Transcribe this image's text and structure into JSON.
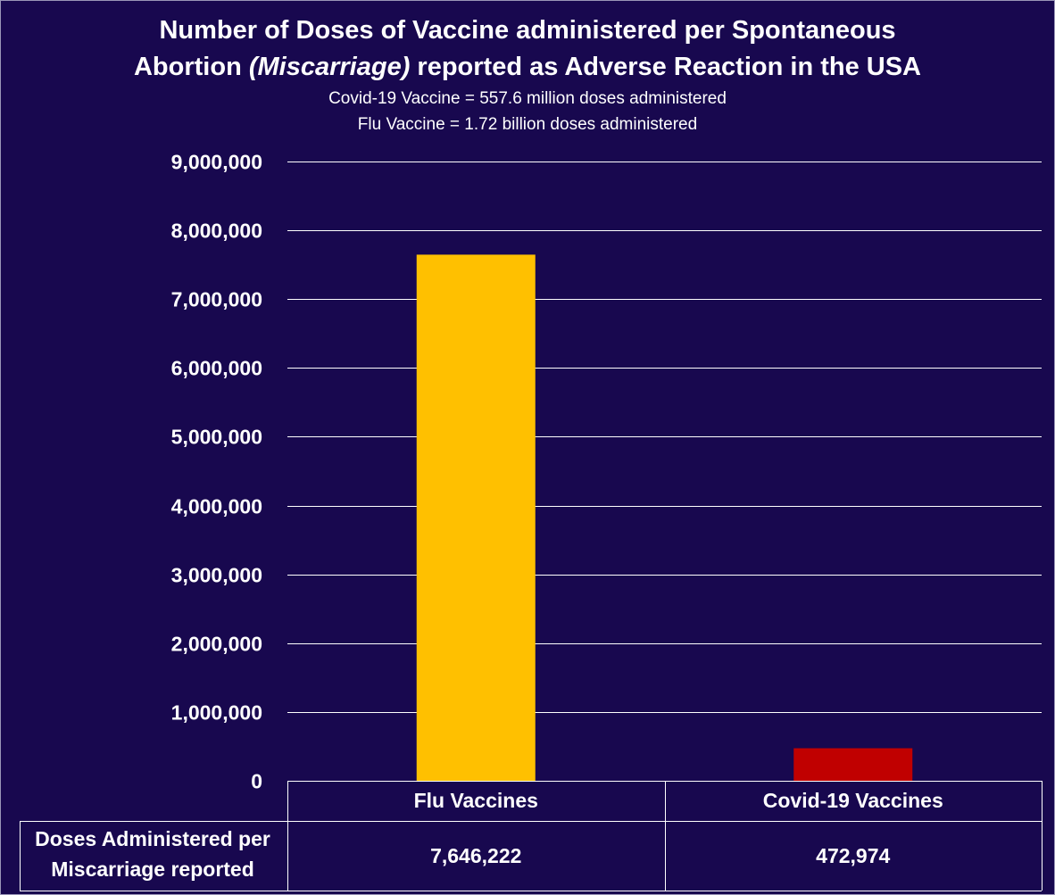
{
  "title_line1": "Number of Doses of Vaccine administered per Spontaneous",
  "title_line2_pre": "Abortion ",
  "title_line2_em": "(Miscarriage)",
  "title_line2_post": " reported as Adverse Reaction in the USA",
  "subtitle_line1": "Covid-19 Vaccine = 557.6 million doses administered",
  "subtitle_line2": "Flu Vaccine = 1.72 billion doses administered",
  "colors": {
    "background": "#18084f",
    "gridline": "#ffffff",
    "flu": "#ffc000",
    "covid": "#c00000"
  },
  "chart_data": {
    "type": "bar",
    "title": "Number of Doses of Vaccine administered per Spontaneous Abortion (Miscarriage) reported as Adverse Reaction in the USA",
    "categories": [
      "Flu Vaccines",
      "Covid-19 Vaccines"
    ],
    "values": [
      7646222,
      472974
    ],
    "value_labels": [
      "7,646,222",
      "472,974"
    ],
    "bar_colors": [
      "#ffc000",
      "#c00000"
    ],
    "ylim": [
      0,
      9000000
    ],
    "yticks": [
      0,
      1000000,
      2000000,
      3000000,
      4000000,
      5000000,
      6000000,
      7000000,
      8000000,
      9000000
    ],
    "ytick_labels": [
      "0",
      "1,000,000",
      "2,000,000",
      "3,000,000",
      "4,000,000",
      "5,000,000",
      "6,000,000",
      "7,000,000",
      "8,000,000",
      "9,000,000"
    ],
    "grid": true,
    "data_table_row_label_line1": "Doses Administered per",
    "data_table_row_label_line2": "Miscarriage reported",
    "xlabel": "",
    "ylabel": ""
  }
}
